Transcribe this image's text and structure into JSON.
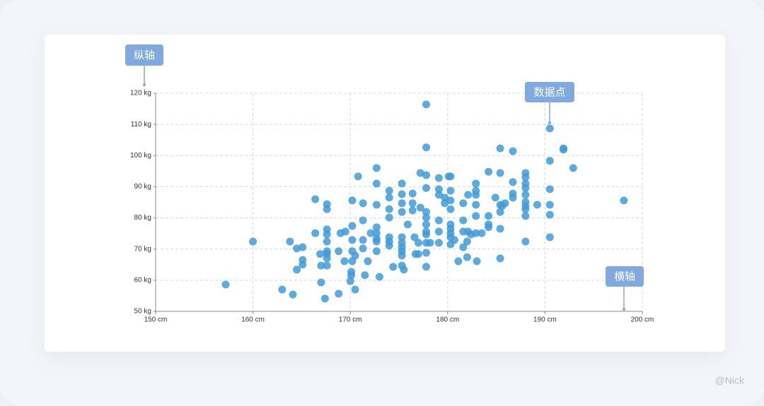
{
  "chart_data": {
    "type": "scatter",
    "color": "#3f9bd8",
    "grid": true,
    "xlim": [
      150,
      200
    ],
    "ylim": [
      50,
      120
    ],
    "xticks": [
      {
        "value": 150,
        "label": "150 cm"
      },
      {
        "value": 160,
        "label": "160 cm"
      },
      {
        "value": 170,
        "label": "170 cm"
      },
      {
        "value": 180,
        "label": "180 cm"
      },
      {
        "value": 190,
        "label": "190 cm"
      },
      {
        "value": 200,
        "label": "200 cm"
      }
    ],
    "yticks": [
      {
        "value": 50,
        "label": "50 kg"
      },
      {
        "value": 60,
        "label": "60 kg"
      },
      {
        "value": 70,
        "label": "70 kg"
      },
      {
        "value": 80,
        "label": "80 kg"
      },
      {
        "value": 90,
        "label": "90 kg"
      },
      {
        "value": 100,
        "label": "100 kg"
      },
      {
        "value": 110,
        "label": "110 kg"
      },
      {
        "value": 120,
        "label": "120 kg"
      }
    ],
    "annotations": [
      "纵轴",
      "数据点",
      "横轴"
    ],
    "watermark": "@Nick",
    "x": [
      157.2,
      160.0,
      163.0,
      163.8,
      164.1,
      164.5,
      164.5,
      165.1,
      165.1,
      165.1,
      166.4,
      166.4,
      166.9,
      167.0,
      167.0,
      167.4,
      167.6,
      167.6,
      167.6,
      167.6,
      167.6,
      167.6,
      167.6,
      167.6,
      167.6,
      168.8,
      168.8,
      169.0,
      169.5,
      169.4,
      170.0,
      170.1,
      170.1,
      170.2,
      170.2,
      170.2,
      170.2,
      170.2,
      170.5,
      170.5,
      170.8,
      171.3,
      171.3,
      171.3,
      171.3,
      171.5,
      171.8,
      172.1,
      172.7,
      172.7,
      172.7,
      172.7,
      172.7,
      172.7,
      172.7,
      172.7,
      173.0,
      174.0,
      174.0,
      174.0,
      174.0,
      174.0,
      174.0,
      174.0,
      174.4,
      175.3,
      175.3,
      175.3,
      175.3,
      175.3,
      175.3,
      175.3,
      175.3,
      175.3,
      175.3,
      175.5,
      175.9,
      176.4,
      176.4,
      176.4,
      176.6,
      176.7,
      177.0,
      177.0,
      177.2,
      177.2,
      177.8,
      177.8,
      177.8,
      177.8,
      177.8,
      177.8,
      177.8,
      177.8,
      177.8,
      177.8,
      177.8,
      177.8,
      178.2,
      179.1,
      179.1,
      179.1,
      179.1,
      179.1,
      179.1,
      179.7,
      179.7,
      180.1,
      180.3,
      180.3,
      180.3,
      180.3,
      180.3,
      180.3,
      180.3,
      180.3,
      180.3,
      180.7,
      181.1,
      181.6,
      181.6,
      181.6,
      181.6,
      182.0,
      182.0,
      182.1,
      182.1,
      182.4,
      182.9,
      182.9,
      182.9,
      182.9,
      182.9,
      182.9,
      183.0,
      183.5,
      184.2,
      184.2,
      184.2,
      184.2,
      184.9,
      185.4,
      185.4,
      185.4,
      185.4,
      185.4,
      185.4,
      185.6,
      185.9,
      186.7,
      186.7,
      186.7,
      186.7,
      188.0,
      188.0,
      188.0,
      188.0,
      188.0,
      188.0,
      188.0,
      188.0,
      188.0,
      188.0,
      189.2,
      190.5,
      190.5,
      190.5,
      190.5,
      190.5,
      190.5,
      191.9,
      191.9,
      192.9,
      198.1
    ],
    "values": [
      58.6,
      72.4,
      57.0,
      72.4,
      55.4,
      70.2,
      63.4,
      70.6,
      66.5,
      65.0,
      86.0,
      75.1,
      68.4,
      59.3,
      64.7,
      54.1,
      84.4,
      82.8,
      76.3,
      74.7,
      72.4,
      69.3,
      68.4,
      67.0,
      64.7,
      69.3,
      55.7,
      75.1,
      75.6,
      66.1,
      59.7,
      61.6,
      62.7,
      85.6,
      77.4,
      72.9,
      69.3,
      66.1,
      57.0,
      67.9,
      93.3,
      84.7,
      79.2,
      72.9,
      70.2,
      61.6,
      66.1,
      75.1,
      96.0,
      91.0,
      84.2,
      77.0,
      75.1,
      73.3,
      72.4,
      69.3,
      61.1,
      88.7,
      86.5,
      82.8,
      80.1,
      73.8,
      72.4,
      71.1,
      64.3,
      91.0,
      87.6,
      84.7,
      81.9,
      73.8,
      72.0,
      70.6,
      69.3,
      67.9,
      64.7,
      63.4,
      77.9,
      87.8,
      84.7,
      82.4,
      73.8,
      68.4,
      72.0,
      68.4,
      94.4,
      83.3,
      116.4,
      102.6,
      93.7,
      89.6,
      81.9,
      80.1,
      77.9,
      75.6,
      74.7,
      72.0,
      68.8,
      64.3,
      72.0,
      92.8,
      89.2,
      87.4,
      79.2,
      75.6,
      72.0,
      86.5,
      84.7,
      93.3,
      93.3,
      88.7,
      85.6,
      82.8,
      77.9,
      76.5,
      75.1,
      73.8,
      71.5,
      72.9,
      66.1,
      84.7,
      79.2,
      75.6,
      70.6,
      72.4,
      67.4,
      87.4,
      75.6,
      74.7,
      91.0,
      88.7,
      87.4,
      84.2,
      80.6,
      75.1,
      66.1,
      75.1,
      94.8,
      80.6,
      77.9,
      77.0,
      86.5,
      102.3,
      94.4,
      84.2,
      81.9,
      76.5,
      67.0,
      83.8,
      84.7,
      101.4,
      91.5,
      87.8,
      86.5,
      94.4,
      93.0,
      91.0,
      89.6,
      87.4,
      85.1,
      83.8,
      82.8,
      80.6,
      72.4,
      84.2,
      108.7,
      98.3,
      89.2,
      84.2,
      81.0,
      73.8,
      102.3,
      101.9,
      96.0,
      85.6
    ]
  }
}
